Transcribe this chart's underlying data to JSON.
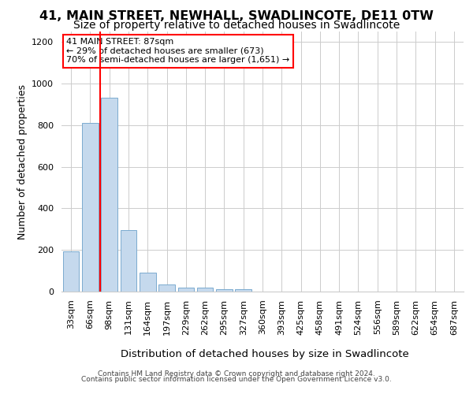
{
  "title1": "41, MAIN STREET, NEWHALL, SWADLINCOTE, DE11 0TW",
  "title2": "Size of property relative to detached houses in Swadlincote",
  "xlabel": "Distribution of detached houses by size in Swadlincote",
  "ylabel": "Number of detached properties",
  "footer1": "Contains HM Land Registry data © Crown copyright and database right 2024.",
  "footer2": "Contains public sector information licensed under the Open Government Licence v3.0.",
  "categories": [
    "33sqm",
    "66sqm",
    "98sqm",
    "131sqm",
    "164sqm",
    "197sqm",
    "229sqm",
    "262sqm",
    "295sqm",
    "327sqm",
    "360sqm",
    "393sqm",
    "425sqm",
    "458sqm",
    "491sqm",
    "524sqm",
    "556sqm",
    "589sqm",
    "622sqm",
    "654sqm",
    "687sqm"
  ],
  "values": [
    195,
    810,
    930,
    295,
    90,
    35,
    20,
    20,
    10,
    10,
    0,
    0,
    0,
    0,
    0,
    0,
    0,
    0,
    0,
    0,
    0
  ],
  "bar_color": "#c5d9ed",
  "bar_edge_color": "#7baacf",
  "ylim_max": 1250,
  "yticks": [
    0,
    200,
    400,
    600,
    800,
    1000,
    1200
  ],
  "annotation_text": "41 MAIN STREET: 87sqm\n← 29% of detached houses are smaller (673)\n70% of semi-detached houses are larger (1,651) →",
  "redline_x": 1.5,
  "grid_color": "#cccccc",
  "title1_fontsize": 11.5,
  "title2_fontsize": 10,
  "tick_fontsize": 8,
  "ylabel_fontsize": 9,
  "xlabel_fontsize": 9.5,
  "annotation_fontsize": 8,
  "footer_fontsize": 6.5
}
